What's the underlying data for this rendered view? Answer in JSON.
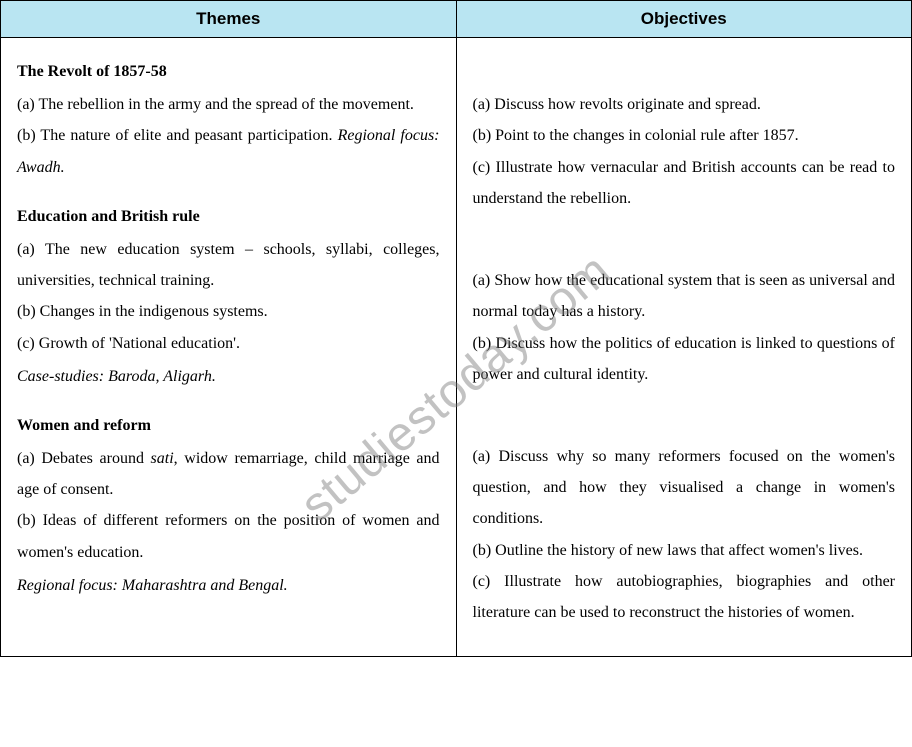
{
  "table": {
    "headers": {
      "left": "Themes",
      "right": "Objectives"
    },
    "header_bg": "#b9e5f2",
    "border_color": "#000000",
    "font_body": "Georgia, 'Times New Roman', serif",
    "font_header": "Verdana, Arial, sans-serif"
  },
  "sections": {
    "revolt": {
      "title": "The Revolt of 1857-58",
      "themes": {
        "a": "(a) The rebellion in the army and the spread of the movement.",
        "b_pre": "(b) The nature of elite and peasant participation. ",
        "b_italic": "Regional focus: Awadh."
      },
      "objectives": {
        "a": "(a) Discuss how revolts originate and spread.",
        "b": "(b) Point to the changes in colonial rule after 1857.",
        "c": "(c) Illustrate how vernacular and British accounts can be read to understand the rebellion."
      }
    },
    "education": {
      "title": "Education and British rule",
      "themes": {
        "a": "(a) The new education system – schools, syllabi, colleges, universities, technical training.",
        "b": "(b) Changes in the indigenous systems.",
        "c": "(c) Growth of 'National education'.",
        "case": "Case-studies: Baroda, Aligarh."
      },
      "objectives": {
        "a": "(a) Show how the educational system that is seen as universal and normal today has a history.",
        "b": "(b) Discuss how the politics of education is linked to questions of power and cultural identity."
      }
    },
    "women": {
      "title": "Women and reform",
      "themes": {
        "a_pre": "(a) Debates around ",
        "a_italic": "sati",
        "a_post": ", widow remarriage, child marriage and age of consent.",
        "b": "(b) Ideas of different reformers on the position of women and women's education.",
        "case": "Regional focus: Maharashtra and Bengal."
      },
      "objectives": {
        "a": "(a) Discuss why so many reformers focused on the women's question, and how they visualised a change in women's conditions.",
        "b": "(b) Outline the history of new laws that affect women's lives.",
        "c": "(c) Illustrate how autobiographies, biographies and other literature can be used to reconstruct the histories of women."
      }
    }
  },
  "watermark": {
    "text": "studiestoday.com",
    "color": "rgba(120,120,120,0.45)",
    "rotation_deg": -40,
    "fontsize": 48
  }
}
